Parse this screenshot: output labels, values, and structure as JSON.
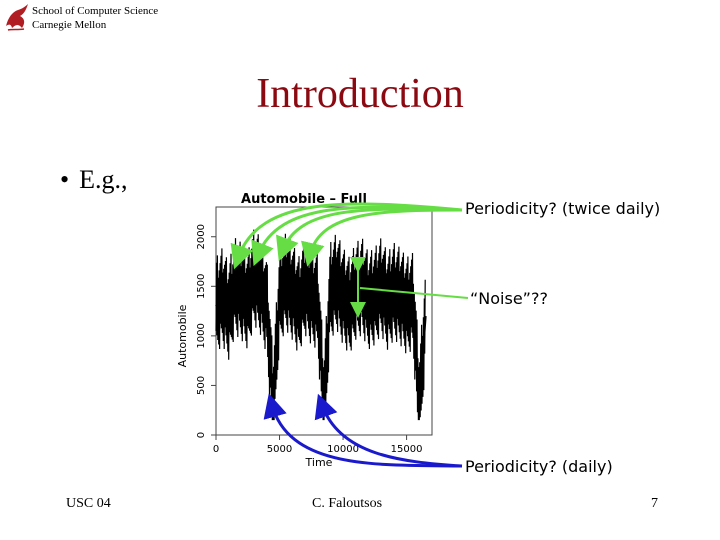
{
  "header": {
    "school_line1": "School of Computer Science",
    "school_line2": "Carnegie Mellon"
  },
  "slide": {
    "title": "Introduction",
    "bullet": "E.g.,"
  },
  "annotations": {
    "periodicity_twice": "Periodicity? (twice daily)",
    "noise": "“Noise”??",
    "periodicity_daily": "Periodicity? (daily)"
  },
  "footer": {
    "left": "USC 04",
    "center": "C. Faloutsos",
    "page": "7"
  },
  "colors": {
    "title": "#8b0a12",
    "green_arrow": "#66dd44",
    "blue_arrow": "#1a1acc"
  },
  "chart_data": {
    "type": "line",
    "title": "Automobile – Full",
    "xlabel": "Time",
    "ylabel": "Automobile",
    "xlim": [
      0,
      17000
    ],
    "ylim": [
      0,
      2300
    ],
    "x_ticks": [
      0,
      5000,
      10000,
      15000
    ],
    "y_ticks": [
      0,
      500,
      1000,
      1500,
      2000
    ],
    "x_tick_labels": [
      "0",
      "5000",
      "10000",
      "15000"
    ],
    "y_tick_labels": [
      "0",
      "500",
      "1000",
      "1500",
      "2000"
    ],
    "grid": false,
    "series": [
      {
        "x": [
          0,
          500,
          1000,
          1500,
          2000,
          2500,
          3000,
          3500,
          4000,
          4500,
          5000,
          5500,
          6000,
          6500,
          7000,
          7500,
          8000,
          8500,
          9000,
          9500,
          10000,
          10500,
          11000,
          11500,
          12000,
          12500,
          13000,
          13500,
          14000,
          14500,
          15000,
          15500,
          16000,
          16500
        ],
        "y": [
          1300,
          1400,
          1250,
          1500,
          1450,
          1350,
          1600,
          1500,
          1300,
          300,
          1400,
          1550,
          1450,
          1300,
          1500,
          1400,
          1350,
          300,
          1450,
          1550,
          1400,
          1300,
          1450,
          1500,
          1350,
          1400,
          1500,
          1350,
          1450,
          1400,
          1300,
          1350,
          300,
          1200
        ]
      }
    ]
  }
}
